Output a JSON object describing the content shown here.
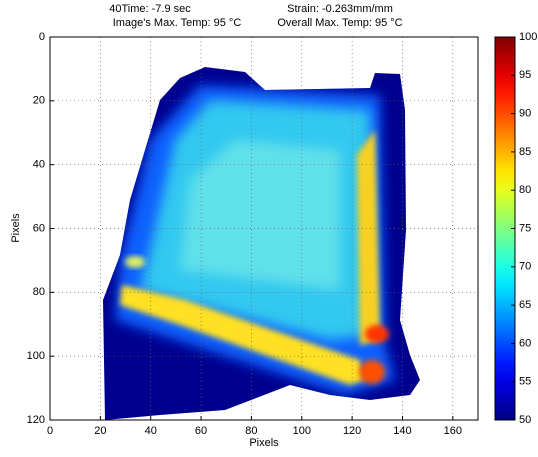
{
  "chart_data": {
    "type": "heatmap",
    "title_lines": [
      [
        "40Time: -7.9 sec",
        "Strain: -0.263mm/mm"
      ],
      [
        "Image's Max. Temp: 95 °C",
        "Overall Max. Temp: 95 °C"
      ]
    ],
    "x_label": "Pixels",
    "y_label": "Pixels",
    "xlim": [
      0,
      170
    ],
    "xticks": [
      0,
      20,
      40,
      60,
      80,
      100,
      120,
      140,
      160
    ],
    "ylim": [
      0,
      120
    ],
    "yticks": [
      0,
      20,
      40,
      60,
      80,
      100,
      120
    ],
    "grid": true,
    "colormap": "jet",
    "clim": [
      50,
      100
    ],
    "colorbar_ticks": [
      50,
      55,
      60,
      65,
      70,
      75,
      80,
      85,
      90,
      95,
      100
    ]
  }
}
